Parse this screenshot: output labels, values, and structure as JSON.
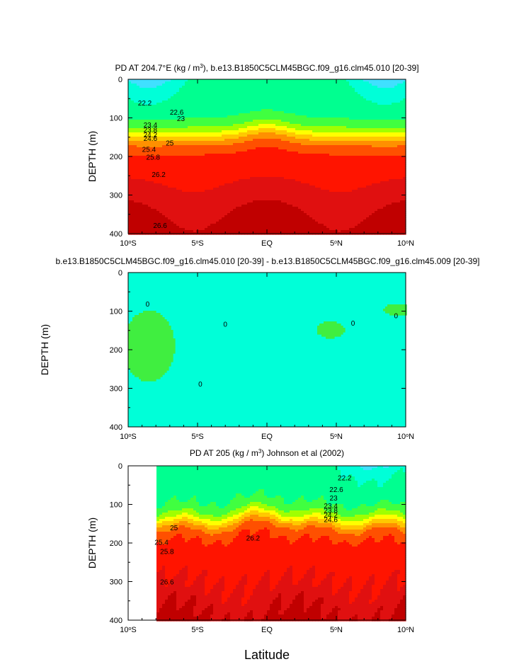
{
  "chart_data": [
    {
      "type": "contour",
      "title": "PD AT 204.7°E (kg / m³), b.e13.B1850C5CLM45BGC.f09_g16.clm45.010 [20-39]",
      "ylabel": "DEPTH (m)",
      "xlabel": "",
      "xlim": [
        -10,
        10
      ],
      "ylim": [
        400,
        0
      ],
      "x_ticks": [
        "10°S",
        "5°S",
        "EQ",
        "5°N",
        "10°N"
      ],
      "y_ticks": [
        "0",
        "100",
        "200",
        "300",
        "400"
      ],
      "contour_labels": [
        "22.2",
        "22.6",
        "23",
        "23.4",
        "23.8",
        "24.2",
        "24.6",
        "25",
        "25.4",
        "25.8",
        "26.2",
        "26.6"
      ],
      "colors": [
        "#ff40ff",
        "#e000e0",
        "#b000d8",
        "#7000e0",
        "#2020ff",
        "#0070ff",
        "#00b4ff",
        "#20c8ff",
        "#40e0ff",
        "#00ffd8",
        "#00ff90",
        "#40ff40",
        "#a0ff00",
        "#ffff00",
        "#ffc800",
        "#ff9000",
        "#ff5000",
        "#ff1400",
        "#e01010",
        "#c00000"
      ]
    },
    {
      "type": "contour",
      "title": "b.e13.B1850C5CLM45BGC.f09_g16.clm45.010 [20-39] - b.e13.B1850C5CLM45BGC.f09_g16.clm45.009 [20-39]",
      "ylabel": "DEPTH (m)",
      "xlim": [
        -10,
        10
      ],
      "ylim": [
        400,
        0
      ],
      "x_ticks": [
        "10°S",
        "5°S",
        "EQ",
        "5°N",
        "10°N"
      ],
      "y_ticks": [
        "0",
        "100",
        "200",
        "300",
        "400"
      ],
      "contour_labels": [
        "0",
        "0",
        "0",
        "0",
        "0"
      ],
      "colors": [
        "#00ffd8",
        "#40ee40"
      ]
    },
    {
      "type": "contour",
      "title": "PD AT 205 (kg / m³) Johnson et al (2002)",
      "ylabel": "DEPTH (m)",
      "xlabel": "Latitude",
      "xlim": [
        -10,
        10
      ],
      "ylim": [
        400,
        0
      ],
      "x_ticks": [
        "10°S",
        "5°S",
        "EQ",
        "5°N",
        "10°N"
      ],
      "y_ticks": [
        "0",
        "100",
        "200",
        "300",
        "400"
      ],
      "contour_labels": [
        "22.2",
        "22.6",
        "23",
        "23.4",
        "23.8",
        "24.2",
        "24.6",
        "25",
        "25.4",
        "25.8",
        "26.2",
        "26.6"
      ],
      "colors": [
        "#2020ff",
        "#0070ff",
        "#00b4ff",
        "#20c8ff",
        "#40e0ff",
        "#00ffd8",
        "#00ff90",
        "#40ff40",
        "#a0ff00",
        "#ffff00",
        "#ffc800",
        "#ff9000",
        "#ff5000",
        "#ff1400",
        "#e01010",
        "#c00000"
      ]
    }
  ]
}
